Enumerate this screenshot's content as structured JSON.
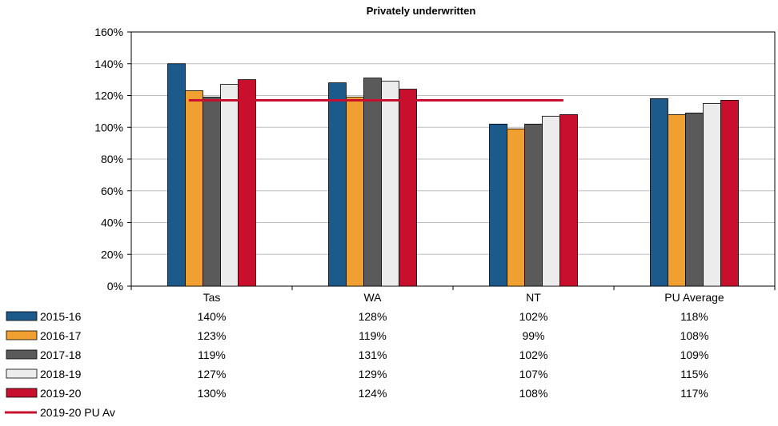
{
  "chart_data": {
    "type": "bar",
    "title": "Privately underwritten",
    "categories": [
      "Tas",
      "WA",
      "NT",
      "PU Average"
    ],
    "ylim": [
      0,
      160
    ],
    "yticks": [
      "0%",
      "20%",
      "40%",
      "60%",
      "80%",
      "100%",
      "120%",
      "140%",
      "160%"
    ],
    "grid": true,
    "series": [
      {
        "name": "2015-16",
        "color": "#1b5a8a",
        "values": [
          140,
          128,
          102,
          118
        ],
        "labels": [
          "140%",
          "128%",
          "102%",
          "118%"
        ]
      },
      {
        "name": "2016-17",
        "color": "#f0a030",
        "values": [
          123,
          119,
          99,
          108
        ],
        "labels": [
          "123%",
          "119%",
          "99%",
          "108%"
        ]
      },
      {
        "name": "2017-18",
        "color": "#5a5a5a",
        "values": [
          119,
          131,
          102,
          109
        ],
        "labels": [
          "119%",
          "131%",
          "102%",
          "109%"
        ]
      },
      {
        "name": "2018-19",
        "color": "#ececec",
        "values": [
          127,
          129,
          107,
          115
        ],
        "labels": [
          "127%",
          "129%",
          "107%",
          "115%"
        ]
      },
      {
        "name": "2019-20",
        "color": "#c8102e",
        "values": [
          130,
          124,
          108,
          117
        ],
        "labels": [
          "130%",
          "124%",
          "108%",
          "117%"
        ]
      }
    ],
    "reference_line": {
      "name": "2019-20 PU Av",
      "value": 117,
      "color": "#c8102e",
      "x_start": "Tas",
      "x_end": "NT"
    },
    "legend_placement": "bottom-left data table"
  }
}
